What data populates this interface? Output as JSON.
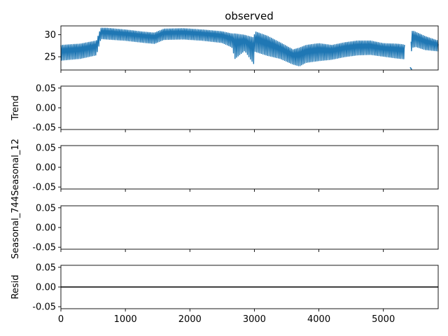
{
  "figure": {
    "title": "observed"
  },
  "chart_data": [
    {
      "type": "line",
      "panel": "observed",
      "title": "observed",
      "ylabel": "",
      "xlim": [
        0,
        5850
      ],
      "ylim": [
        22,
        32
      ],
      "yticks": [
        25,
        30
      ],
      "xticks": [
        0,
        1000,
        2000,
        3000,
        4000,
        5000
      ],
      "show_xtick_labels": false,
      "color": "#1f77b4",
      "envelope": {
        "x": [
          0,
          300,
          550,
          620,
          700,
          1000,
          1300,
          1450,
          1600,
          1900,
          2200,
          2500,
          2650,
          2700,
          2850,
          2990,
          3010,
          3200,
          3400,
          3600,
          3700,
          3800,
          4000,
          4200,
          4400,
          4600,
          4800,
          5000,
          5200,
          5400,
          5450,
          5500,
          5650,
          5850
        ],
        "upper": [
          27.6,
          27.9,
          28.6,
          31.5,
          31.5,
          31.1,
          30.6,
          30.4,
          31.3,
          31.4,
          31.1,
          30.7,
          30.2,
          30.2,
          29.9,
          29.3,
          30.7,
          29.7,
          28.2,
          26.6,
          27.0,
          27.6,
          28.0,
          27.6,
          28.2,
          28.6,
          28.6,
          28.0,
          27.9,
          27.6,
          30.9,
          30.6,
          29.6,
          28.6
        ],
        "lower": [
          24.2,
          24.6,
          25.4,
          29.1,
          29.0,
          28.7,
          28.2,
          28.0,
          28.9,
          29.0,
          28.7,
          28.2,
          27.2,
          24.6,
          26.4,
          23.4,
          26.2,
          25.3,
          24.6,
          23.3,
          22.9,
          23.7,
          24.1,
          24.4,
          25.0,
          25.4,
          25.5,
          25.1,
          24.7,
          24.4,
          27.1,
          27.3,
          26.6,
          26.3
        ]
      },
      "gap": [
        5330,
        5430
      ],
      "isolated_segment": {
        "x": [
          5415,
          5440
        ],
        "y": [
          22.6,
          22.1
        ]
      }
    },
    {
      "type": "line",
      "panel": "trend",
      "ylabel": "Trend",
      "xlim": [
        0,
        5850
      ],
      "ylim": [
        -0.055,
        0.055
      ],
      "yticks": [
        -0.05,
        0.0,
        0.05
      ],
      "xticks": [
        0,
        1000,
        2000,
        3000,
        4000,
        5000
      ],
      "show_xtick_labels": false,
      "series": []
    },
    {
      "type": "line",
      "panel": "seasonal_12",
      "ylabel": "Seasonal_12",
      "xlim": [
        0,
        5850
      ],
      "ylim": [
        -0.055,
        0.055
      ],
      "yticks": [
        -0.05,
        0.0,
        0.05
      ],
      "xticks": [
        0,
        1000,
        2000,
        3000,
        4000,
        5000
      ],
      "show_xtick_labels": false,
      "series": []
    },
    {
      "type": "line",
      "panel": "seasonal_744",
      "ylabel": "Seasonal_744",
      "xlim": [
        0,
        5850
      ],
      "ylim": [
        -0.055,
        0.055
      ],
      "yticks": [
        -0.05,
        0.0,
        0.05
      ],
      "xticks": [
        0,
        1000,
        2000,
        3000,
        4000,
        5000
      ],
      "show_xtick_labels": false,
      "series": []
    },
    {
      "type": "line",
      "panel": "resid",
      "ylabel": "Resid",
      "xlim": [
        0,
        5850
      ],
      "ylim": [
        -0.055,
        0.055
      ],
      "yticks": [
        -0.05,
        0.0,
        0.05
      ],
      "xticks": [
        0,
        1000,
        2000,
        3000,
        4000,
        5000
      ],
      "show_xtick_labels": true,
      "hline": {
        "y": 0,
        "color": "#000000"
      },
      "series": []
    }
  ]
}
